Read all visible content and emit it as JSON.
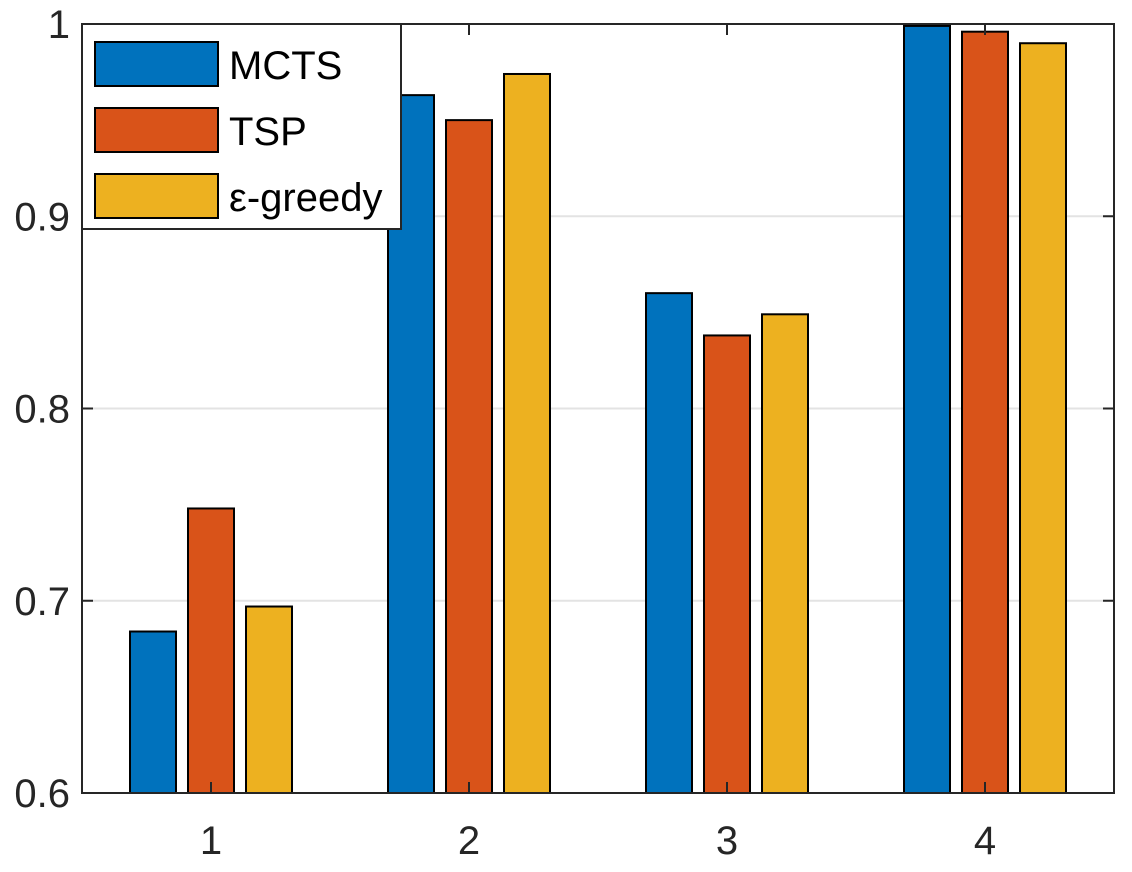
{
  "chart_data": {
    "type": "bar",
    "categories": [
      "1",
      "2",
      "3",
      "4"
    ],
    "series": [
      {
        "name": "MCTS",
        "color": "#0072BD",
        "values": [
          0.684,
          0.963,
          0.86,
          0.999
        ]
      },
      {
        "name": "TSP",
        "color": "#D95319",
        "values": [
          0.748,
          0.95,
          0.838,
          0.996
        ]
      },
      {
        "name": "ε-greedy",
        "color": "#EDB120",
        "values": [
          0.697,
          0.974,
          0.849,
          0.99
        ]
      }
    ],
    "ylim": [
      0.6,
      1.0
    ],
    "yticks": [
      0.6,
      0.7,
      0.8,
      0.9,
      1.0
    ],
    "ytick_labels": [
      "0.6",
      "0.7",
      "0.8",
      "0.9",
      "1"
    ],
    "grid": "horizontal",
    "legend_position": "top-left",
    "title": "",
    "xlabel": "",
    "ylabel": ""
  }
}
